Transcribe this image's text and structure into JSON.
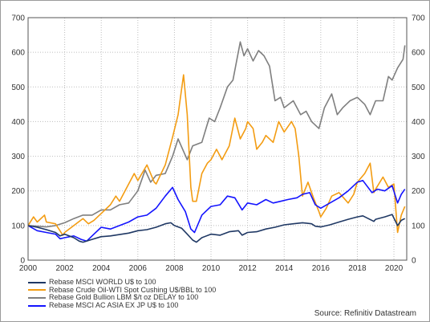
{
  "chart_data": {
    "type": "line",
    "title": "",
    "xlabel": "",
    "ylabel": "",
    "xlim": [
      2000,
      2020.7
    ],
    "ylim": [
      0,
      700
    ],
    "x_ticks": [
      "2000",
      "2002",
      "2004",
      "2006",
      "2008",
      "2010",
      "2012",
      "2014",
      "2016",
      "2018",
      "2020"
    ],
    "y_ticks": [
      "0",
      "100",
      "200",
      "300",
      "400",
      "500",
      "600",
      "700"
    ],
    "y_axis_both_sides": true,
    "grid": true,
    "legend_position": "bottom-left",
    "series": [
      {
        "name": "Rebase MSCI WORLD U$ to 100",
        "color": "#1f3864",
        "points": [
          [
            2000,
            100
          ],
          [
            2000.5,
            95
          ],
          [
            2001,
            88
          ],
          [
            2001.5,
            80
          ],
          [
            2001.75,
            70
          ],
          [
            2002,
            75
          ],
          [
            2002.5,
            65
          ],
          [
            2002.8,
            55
          ],
          [
            2003,
            52
          ],
          [
            2003.5,
            60
          ],
          [
            2004,
            68
          ],
          [
            2004.5,
            70
          ],
          [
            2005,
            74
          ],
          [
            2005.5,
            78
          ],
          [
            2006,
            85
          ],
          [
            2006.5,
            88
          ],
          [
            2007,
            95
          ],
          [
            2007.5,
            105
          ],
          [
            2007.8,
            108
          ],
          [
            2008,
            100
          ],
          [
            2008.4,
            92
          ],
          [
            2008.7,
            75
          ],
          [
            2009,
            58
          ],
          [
            2009.2,
            52
          ],
          [
            2009.5,
            65
          ],
          [
            2010,
            75
          ],
          [
            2010.5,
            72
          ],
          [
            2011,
            82
          ],
          [
            2011.5,
            85
          ],
          [
            2011.7,
            72
          ],
          [
            2012,
            80
          ],
          [
            2012.5,
            82
          ],
          [
            2013,
            90
          ],
          [
            2013.5,
            95
          ],
          [
            2014,
            102
          ],
          [
            2014.5,
            105
          ],
          [
            2015,
            108
          ],
          [
            2015.5,
            105
          ],
          [
            2015.7,
            98
          ],
          [
            2016,
            96
          ],
          [
            2016.5,
            102
          ],
          [
            2017,
            110
          ],
          [
            2017.5,
            118
          ],
          [
            2018,
            125
          ],
          [
            2018.3,
            128
          ],
          [
            2018.9,
            112
          ],
          [
            2019,
            118
          ],
          [
            2019.5,
            125
          ],
          [
            2019.9,
            132
          ],
          [
            2020.2,
            100
          ],
          [
            2020.4,
            115
          ],
          [
            2020.6,
            120
          ]
        ]
      },
      {
        "name": "Rebase Crude Oil-WTI Spot Cushing U$/BBL to 100",
        "color": "#f39c12",
        "points": [
          [
            2000,
            100
          ],
          [
            2000.3,
            125
          ],
          [
            2000.5,
            110
          ],
          [
            2000.9,
            130
          ],
          [
            2001,
            110
          ],
          [
            2001.5,
            105
          ],
          [
            2001.9,
            72
          ],
          [
            2002,
            80
          ],
          [
            2002.5,
            100
          ],
          [
            2003,
            120
          ],
          [
            2003.3,
            105
          ],
          [
            2003.6,
            115
          ],
          [
            2004,
            135
          ],
          [
            2004.5,
            160
          ],
          [
            2004.8,
            185
          ],
          [
            2005,
            170
          ],
          [
            2005.5,
            220
          ],
          [
            2005.8,
            250
          ],
          [
            2006,
            230
          ],
          [
            2006.5,
            275
          ],
          [
            2006.9,
            225
          ],
          [
            2007,
            220
          ],
          [
            2007.5,
            275
          ],
          [
            2007.9,
            355
          ],
          [
            2008.2,
            420
          ],
          [
            2008.5,
            535
          ],
          [
            2008.7,
            420
          ],
          [
            2008.9,
            210
          ],
          [
            2009,
            170
          ],
          [
            2009.2,
            170
          ],
          [
            2009.5,
            250
          ],
          [
            2009.8,
            280
          ],
          [
            2010,
            290
          ],
          [
            2010.3,
            320
          ],
          [
            2010.6,
            290
          ],
          [
            2011,
            330
          ],
          [
            2011.3,
            410
          ],
          [
            2011.6,
            350
          ],
          [
            2011.9,
            380
          ],
          [
            2012,
            400
          ],
          [
            2012.3,
            380
          ],
          [
            2012.5,
            320
          ],
          [
            2012.8,
            340
          ],
          [
            2013,
            360
          ],
          [
            2013.4,
            340
          ],
          [
            2013.7,
            400
          ],
          [
            2014,
            370
          ],
          [
            2014.4,
            400
          ],
          [
            2014.6,
            380
          ],
          [
            2014.8,
            300
          ],
          [
            2015,
            185
          ],
          [
            2015.3,
            225
          ],
          [
            2015.6,
            180
          ],
          [
            2015.9,
            140
          ],
          [
            2016,
            125
          ],
          [
            2016.3,
            150
          ],
          [
            2016.6,
            185
          ],
          [
            2017,
            195
          ],
          [
            2017.5,
            165
          ],
          [
            2017.8,
            190
          ],
          [
            2018,
            225
          ],
          [
            2018.4,
            250
          ],
          [
            2018.7,
            280
          ],
          [
            2018.9,
            195
          ],
          [
            2019,
            205
          ],
          [
            2019.4,
            240
          ],
          [
            2019.7,
            210
          ],
          [
            2020,
            220
          ],
          [
            2020.2,
            80
          ],
          [
            2020.4,
            130
          ],
          [
            2020.6,
            155
          ]
        ]
      },
      {
        "name": "Rebase Gold Bullion LBM $/t oz DELAY to 100",
        "color": "#7f7f7f",
        "points": [
          [
            2000,
            100
          ],
          [
            2000.5,
            98
          ],
          [
            2001,
            96
          ],
          [
            2001.5,
            100
          ],
          [
            2002,
            108
          ],
          [
            2002.5,
            120
          ],
          [
            2003,
            130
          ],
          [
            2003.5,
            130
          ],
          [
            2004,
            145
          ],
          [
            2004.5,
            145
          ],
          [
            2005,
            160
          ],
          [
            2005.5,
            165
          ],
          [
            2006,
            200
          ],
          [
            2006.4,
            260
          ],
          [
            2006.7,
            225
          ],
          [
            2007,
            245
          ],
          [
            2007.5,
            250
          ],
          [
            2007.9,
            300
          ],
          [
            2008.2,
            350
          ],
          [
            2008.7,
            290
          ],
          [
            2009,
            330
          ],
          [
            2009.5,
            340
          ],
          [
            2009.9,
            410
          ],
          [
            2010.2,
            400
          ],
          [
            2010.5,
            440
          ],
          [
            2010.9,
            500
          ],
          [
            2011.2,
            520
          ],
          [
            2011.6,
            630
          ],
          [
            2011.8,
            590
          ],
          [
            2012,
            610
          ],
          [
            2012.3,
            575
          ],
          [
            2012.6,
            605
          ],
          [
            2012.9,
            590
          ],
          [
            2013.2,
            560
          ],
          [
            2013.5,
            460
          ],
          [
            2013.8,
            470
          ],
          [
            2014,
            440
          ],
          [
            2014.5,
            460
          ],
          [
            2014.9,
            420
          ],
          [
            2015.2,
            430
          ],
          [
            2015.5,
            400
          ],
          [
            2015.9,
            380
          ],
          [
            2016.2,
            440
          ],
          [
            2016.6,
            480
          ],
          [
            2016.9,
            420
          ],
          [
            2017.2,
            440
          ],
          [
            2017.6,
            460
          ],
          [
            2018,
            470
          ],
          [
            2018.4,
            450
          ],
          [
            2018.7,
            420
          ],
          [
            2019,
            460
          ],
          [
            2019.4,
            460
          ],
          [
            2019.7,
            530
          ],
          [
            2019.9,
            520
          ],
          [
            2020.2,
            555
          ],
          [
            2020.5,
            580
          ],
          [
            2020.6,
            620
          ]
        ]
      },
      {
        "name": "Rebase MSCI AC ASIA EX JP U$ to 100",
        "color": "#1414ff",
        "points": [
          [
            2000,
            100
          ],
          [
            2000.5,
            85
          ],
          [
            2001,
            80
          ],
          [
            2001.5,
            75
          ],
          [
            2001.75,
            62
          ],
          [
            2002,
            65
          ],
          [
            2002.5,
            70
          ],
          [
            2002.9,
            60
          ],
          [
            2003.2,
            55
          ],
          [
            2003.6,
            75
          ],
          [
            2004,
            95
          ],
          [
            2004.5,
            90
          ],
          [
            2005,
            100
          ],
          [
            2005.5,
            110
          ],
          [
            2006,
            125
          ],
          [
            2006.5,
            130
          ],
          [
            2007,
            150
          ],
          [
            2007.5,
            185
          ],
          [
            2007.9,
            210
          ],
          [
            2008.2,
            175
          ],
          [
            2008.6,
            140
          ],
          [
            2008.9,
            90
          ],
          [
            2009.1,
            80
          ],
          [
            2009.5,
            130
          ],
          [
            2010,
            155
          ],
          [
            2010.5,
            160
          ],
          [
            2010.9,
            185
          ],
          [
            2011.3,
            180
          ],
          [
            2011.7,
            145
          ],
          [
            2012,
            165
          ],
          [
            2012.5,
            160
          ],
          [
            2013,
            175
          ],
          [
            2013.4,
            165
          ],
          [
            2013.8,
            170
          ],
          [
            2014.2,
            175
          ],
          [
            2014.7,
            180
          ],
          [
            2015,
            190
          ],
          [
            2015.4,
            195
          ],
          [
            2015.7,
            160
          ],
          [
            2016,
            150
          ],
          [
            2016.5,
            165
          ],
          [
            2017,
            180
          ],
          [
            2017.5,
            200
          ],
          [
            2018,
            225
          ],
          [
            2018.3,
            230
          ],
          [
            2018.8,
            195
          ],
          [
            2019.1,
            205
          ],
          [
            2019.5,
            200
          ],
          [
            2019.9,
            215
          ],
          [
            2020.2,
            165
          ],
          [
            2020.4,
            190
          ],
          [
            2020.6,
            205
          ]
        ]
      }
    ]
  },
  "source_text": "Source: Refinitiv Datastream"
}
